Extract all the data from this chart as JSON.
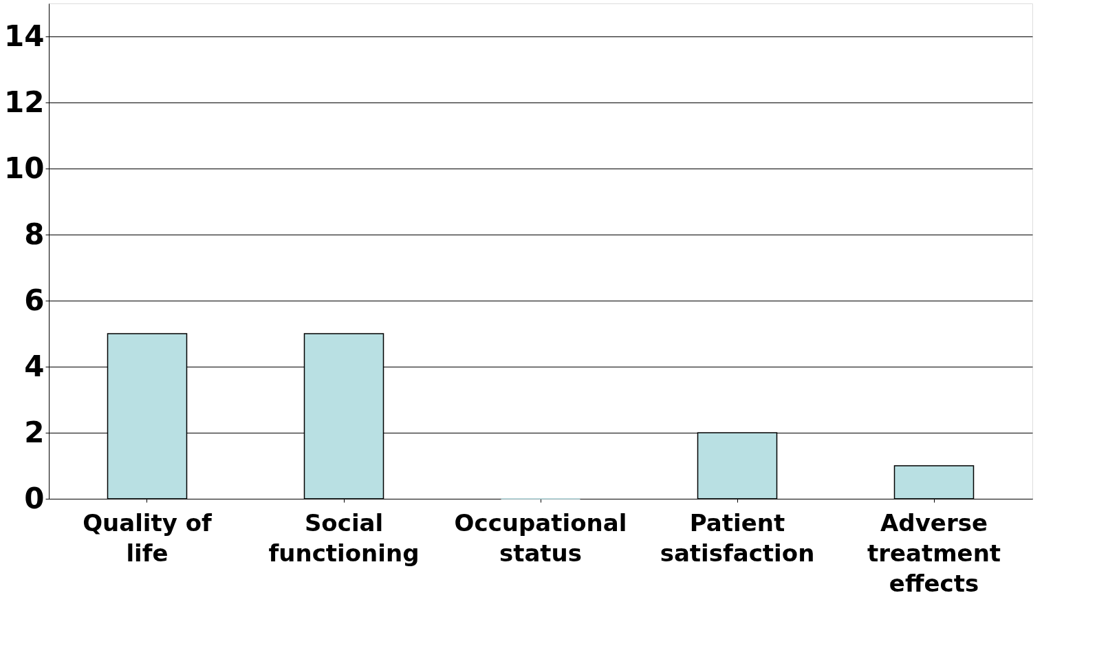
{
  "chart_data": {
    "type": "bar",
    "categories": [
      "Quality of life",
      "Social functioning",
      "Occupational status",
      "Patient satisfaction",
      "Adverse treatment effects"
    ],
    "values": [
      5,
      5,
      0,
      2,
      1
    ],
    "color": "#b9e0e3",
    "ylim": [
      0,
      15
    ],
    "yticks": [
      0,
      2,
      4,
      6,
      8,
      10,
      12,
      14
    ],
    "grid": "y"
  }
}
